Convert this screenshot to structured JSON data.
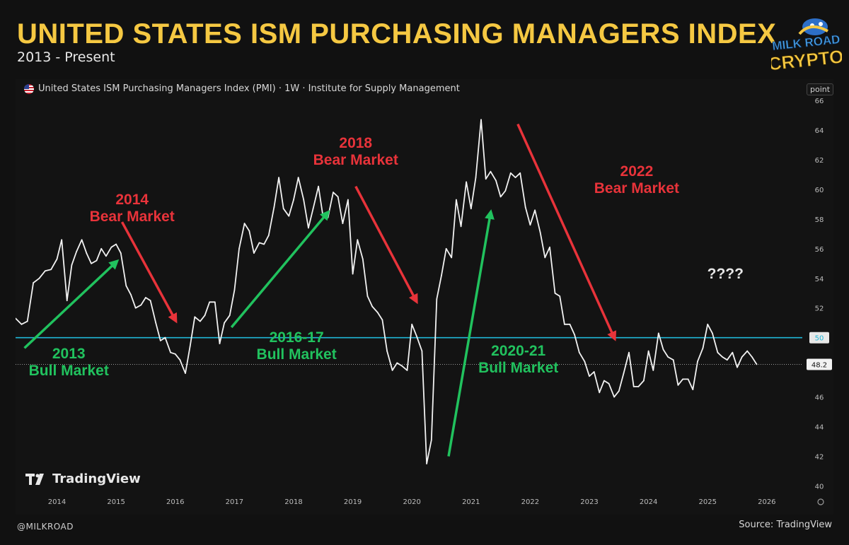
{
  "header": {
    "title": "UNITED STATES ISM PURCHASING MANAGERS INDEX",
    "subtitle": "2013 - Present"
  },
  "logo": {
    "line1": "MILK ROAD",
    "line2": "CRYPTO",
    "icon": "cow-mascot-icon"
  },
  "chart_data": {
    "type": "line",
    "legend_text": "United States ISM Purchasing Managers Index (PMI) · 1W · Institute for Supply Management",
    "unit": "point",
    "x_ticks": [
      "2014",
      "2015",
      "2016",
      "2017",
      "2018",
      "2019",
      "2020",
      "2021",
      "2022",
      "2023",
      "2024",
      "2025",
      "2026"
    ],
    "xlim": [
      2013.3,
      2026.6
    ],
    "y_ticks": [
      40,
      42,
      44,
      46,
      48,
      50,
      52,
      54,
      56,
      58,
      60,
      62,
      64,
      66
    ],
    "ylim": [
      39.5,
      66
    ],
    "grid": false,
    "reference_line": {
      "value": 50,
      "label": "50",
      "color": "#1fb6d6"
    },
    "last_value": {
      "value": 48.2,
      "label": "48.2"
    },
    "line_color": "#f2f2f2",
    "series": [
      {
        "values": [
          [
            2013.3,
            51.3
          ],
          [
            2013.4,
            50.9
          ],
          [
            2013.5,
            51.1
          ],
          [
            2013.6,
            53.7
          ],
          [
            2013.7,
            54.0
          ],
          [
            2013.8,
            54.5
          ],
          [
            2013.9,
            54.6
          ],
          [
            2014.0,
            55.3
          ],
          [
            2014.08,
            56.6
          ],
          [
            2014.17,
            52.5
          ],
          [
            2014.25,
            54.9
          ],
          [
            2014.33,
            55.8
          ],
          [
            2014.42,
            56.6
          ],
          [
            2014.5,
            55.7
          ],
          [
            2014.58,
            55.0
          ],
          [
            2014.67,
            55.2
          ],
          [
            2014.75,
            56.0
          ],
          [
            2014.83,
            55.5
          ],
          [
            2014.92,
            56.1
          ],
          [
            2015.0,
            56.3
          ],
          [
            2015.08,
            55.7
          ],
          [
            2015.17,
            53.5
          ],
          [
            2015.25,
            52.9
          ],
          [
            2015.33,
            52.0
          ],
          [
            2015.42,
            52.2
          ],
          [
            2015.5,
            52.7
          ],
          [
            2015.58,
            52.5
          ],
          [
            2015.67,
            51.0
          ],
          [
            2015.75,
            49.8
          ],
          [
            2015.83,
            50.0
          ],
          [
            2015.92,
            49.0
          ],
          [
            2016.0,
            48.9
          ],
          [
            2016.08,
            48.5
          ],
          [
            2016.17,
            47.6
          ],
          [
            2016.25,
            49.4
          ],
          [
            2016.33,
            51.4
          ],
          [
            2016.42,
            51.1
          ],
          [
            2016.5,
            51.5
          ],
          [
            2016.58,
            52.4
          ],
          [
            2016.67,
            52.4
          ],
          [
            2016.75,
            49.6
          ],
          [
            2016.83,
            51.0
          ],
          [
            2016.92,
            51.5
          ],
          [
            2017.0,
            53.2
          ],
          [
            2017.08,
            56.0
          ],
          [
            2017.17,
            57.7
          ],
          [
            2017.25,
            57.2
          ],
          [
            2017.33,
            55.7
          ],
          [
            2017.42,
            56.4
          ],
          [
            2017.5,
            56.3
          ],
          [
            2017.58,
            56.9
          ],
          [
            2017.67,
            58.8
          ],
          [
            2017.75,
            60.8
          ],
          [
            2017.83,
            58.7
          ],
          [
            2017.92,
            58.2
          ],
          [
            2018.0,
            59.3
          ],
          [
            2018.08,
            60.8
          ],
          [
            2018.17,
            59.3
          ],
          [
            2018.25,
            57.4
          ],
          [
            2018.33,
            58.7
          ],
          [
            2018.42,
            60.2
          ],
          [
            2018.5,
            58.1
          ],
          [
            2018.58,
            58.1
          ],
          [
            2018.67,
            59.8
          ],
          [
            2018.75,
            59.5
          ],
          [
            2018.83,
            57.7
          ],
          [
            2018.92,
            59.3
          ],
          [
            2019.0,
            54.3
          ],
          [
            2019.08,
            56.6
          ],
          [
            2019.17,
            55.3
          ],
          [
            2019.25,
            52.8
          ],
          [
            2019.33,
            52.1
          ],
          [
            2019.42,
            51.7
          ],
          [
            2019.5,
            51.2
          ],
          [
            2019.58,
            49.1
          ],
          [
            2019.67,
            47.8
          ],
          [
            2019.75,
            48.3
          ],
          [
            2019.83,
            48.1
          ],
          [
            2019.92,
            47.8
          ],
          [
            2020.0,
            50.9
          ],
          [
            2020.08,
            50.1
          ],
          [
            2020.17,
            49.1
          ],
          [
            2020.25,
            41.5
          ],
          [
            2020.33,
            43.1
          ],
          [
            2020.42,
            52.6
          ],
          [
            2020.5,
            54.2
          ],
          [
            2020.58,
            56.0
          ],
          [
            2020.67,
            55.4
          ],
          [
            2020.75,
            59.3
          ],
          [
            2020.83,
            57.5
          ],
          [
            2020.92,
            60.5
          ],
          [
            2021.0,
            58.7
          ],
          [
            2021.08,
            60.8
          ],
          [
            2021.17,
            64.7
          ],
          [
            2021.25,
            60.7
          ],
          [
            2021.33,
            61.2
          ],
          [
            2021.42,
            60.6
          ],
          [
            2021.5,
            59.5
          ],
          [
            2021.58,
            59.9
          ],
          [
            2021.67,
            61.1
          ],
          [
            2021.75,
            60.8
          ],
          [
            2021.83,
            61.1
          ],
          [
            2021.92,
            58.8
          ],
          [
            2022.0,
            57.6
          ],
          [
            2022.08,
            58.6
          ],
          [
            2022.17,
            57.1
          ],
          [
            2022.25,
            55.4
          ],
          [
            2022.33,
            56.1
          ],
          [
            2022.42,
            53.0
          ],
          [
            2022.5,
            52.8
          ],
          [
            2022.58,
            50.9
          ],
          [
            2022.67,
            50.9
          ],
          [
            2022.75,
            50.2
          ],
          [
            2022.83,
            49.0
          ],
          [
            2022.92,
            48.4
          ],
          [
            2023.0,
            47.4
          ],
          [
            2023.08,
            47.7
          ],
          [
            2023.17,
            46.3
          ],
          [
            2023.25,
            47.1
          ],
          [
            2023.33,
            46.9
          ],
          [
            2023.42,
            46.0
          ],
          [
            2023.5,
            46.4
          ],
          [
            2023.58,
            47.6
          ],
          [
            2023.67,
            49.0
          ],
          [
            2023.75,
            46.7
          ],
          [
            2023.83,
            46.7
          ],
          [
            2023.92,
            47.1
          ],
          [
            2024.0,
            49.1
          ],
          [
            2024.08,
            47.8
          ],
          [
            2024.17,
            50.3
          ],
          [
            2024.25,
            49.2
          ],
          [
            2024.33,
            48.7
          ],
          [
            2024.42,
            48.5
          ],
          [
            2024.5,
            46.8
          ],
          [
            2024.58,
            47.2
          ],
          [
            2024.67,
            47.2
          ],
          [
            2024.75,
            46.5
          ],
          [
            2024.83,
            48.4
          ],
          [
            2024.92,
            49.3
          ],
          [
            2025.0,
            50.9
          ],
          [
            2025.08,
            50.3
          ],
          [
            2025.17,
            49.0
          ],
          [
            2025.25,
            48.7
          ],
          [
            2025.33,
            48.5
          ],
          [
            2025.42,
            49.0
          ],
          [
            2025.5,
            48.0
          ],
          [
            2025.58,
            48.7
          ],
          [
            2025.67,
            49.1
          ],
          [
            2025.75,
            48.7
          ],
          [
            2025.83,
            48.2
          ]
        ]
      }
    ],
    "annotations": [
      {
        "lines": [
          "2014",
          "Bear Market"
        ],
        "color": "#e8333a",
        "x": 2015.27,
        "y": 59.0
      },
      {
        "lines": [
          "2018",
          "Bear Market"
        ],
        "color": "#e8333a",
        "x": 2019.05,
        "y": 62.8
      },
      {
        "lines": [
          "2022",
          "Bear Market"
        ],
        "color": "#e8333a",
        "x": 2023.8,
        "y": 60.9
      },
      {
        "lines": [
          "2013",
          "Bull Market"
        ],
        "color": "#21c25e",
        "x": 2014.2,
        "y": 48.6
      },
      {
        "lines": [
          "2016-17",
          "Bull Market"
        ],
        "color": "#21c25e",
        "x": 2018.05,
        "y": 49.7
      },
      {
        "lines": [
          "2020-21",
          "Bull Market"
        ],
        "color": "#21c25e",
        "x": 2021.8,
        "y": 48.8
      },
      {
        "lines": [
          "????"
        ],
        "color": "#e6e6e6",
        "x": 2025.3,
        "y": 54.0
      }
    ],
    "arrows": [
      {
        "color": "#21c25e",
        "from": [
          2013.45,
          49.3
        ],
        "to": [
          2015.0,
          55.1
        ]
      },
      {
        "color": "#e8333a",
        "from": [
          2015.1,
          57.8
        ],
        "to": [
          2016.0,
          51.2
        ]
      },
      {
        "color": "#21c25e",
        "from": [
          2016.95,
          50.7
        ],
        "to": [
          2018.57,
          58.4
        ]
      },
      {
        "color": "#e8333a",
        "from": [
          2019.05,
          60.2
        ],
        "to": [
          2020.07,
          52.5
        ]
      },
      {
        "color": "#21c25e",
        "from": [
          2020.62,
          42.0
        ],
        "to": [
          2021.33,
          58.4
        ]
      },
      {
        "color": "#e8333a",
        "from": [
          2021.79,
          64.4
        ],
        "to": [
          2023.42,
          50.0
        ]
      }
    ]
  },
  "branding": {
    "tradingview": "TradingView"
  },
  "footer": {
    "handle": "@MILKROAD",
    "source": "Source: TradingView"
  }
}
